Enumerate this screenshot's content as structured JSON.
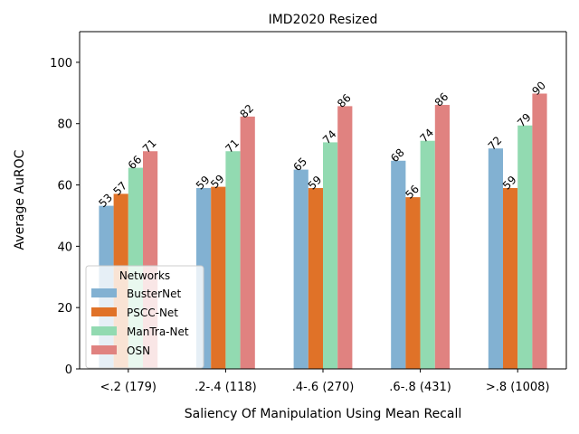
{
  "chart_data": {
    "type": "bar",
    "title": "IMD2020 Resized",
    "xlabel": "Saliency Of Manipulation Using Mean Recall",
    "ylabel": "Average AuROC",
    "ylim": [
      0,
      110
    ],
    "yticks": [
      0,
      20,
      40,
      60,
      80,
      100
    ],
    "categories": [
      "<.2 (179)",
      ".2-.4 (118)",
      ".4-.6 (270)",
      ".6-.8 (431)",
      ">.8 (1008)"
    ],
    "series": [
      {
        "name": "BusterNet",
        "color": "#82b1d2",
        "values": [
          53.2,
          59.0,
          65.0,
          67.9,
          71.9
        ],
        "labels": [
          "53",
          "59",
          "65",
          "68",
          "72"
        ]
      },
      {
        "name": "PSCC-Net",
        "color": "#e07228",
        "values": [
          57.1,
          59.4,
          59.0,
          56.0,
          59.0
        ],
        "labels": [
          "57",
          "59",
          "59",
          "56",
          "59"
        ]
      },
      {
        "name": "ManTra-Net",
        "color": "#92dab1",
        "values": [
          65.6,
          71.0,
          73.9,
          74.4,
          79.4
        ],
        "labels": [
          "66",
          "71",
          "74",
          "74",
          "79"
        ]
      },
      {
        "name": "OSN",
        "color": "#e08280",
        "values": [
          71.0,
          82.3,
          85.7,
          86.1,
          89.8
        ],
        "labels": [
          "71",
          "82",
          "86",
          "86",
          "90"
        ]
      }
    ],
    "legend": {
      "title": "Networks",
      "placement": "lower-left"
    },
    "grid": false
  }
}
